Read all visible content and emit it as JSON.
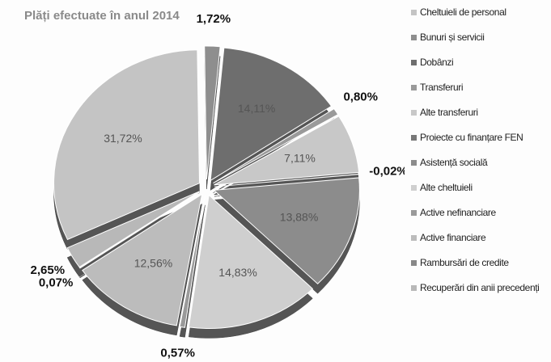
{
  "chart_data": {
    "type": "pie",
    "title": "Plăți efectuate în anul 2014",
    "categories": [
      "Cheltuieli de personal",
      "Bunuri și servicii",
      "Dobânzi",
      "Transferuri",
      "Alte transferuri",
      "Proiecte cu finanțare FEN",
      "Asistență socială",
      "Alte cheltuieli",
      "Active nefinanciare",
      "Active financiare",
      "Rambursări de credite",
      "Recuperări din anii precedenți"
    ],
    "values": [
      31.72,
      1.72,
      14.11,
      0.8,
      7.11,
      -0.02,
      13.88,
      14.83,
      0.57,
      12.56,
      0.07,
      2.65
    ],
    "value_labels": [
      "31,72%",
      "1,72%",
      "14,11%",
      "0,80%",
      "7,11%",
      "-0,02%",
      "13,88%",
      "14,83%",
      "0,57%",
      "12,56%",
      "0,07%",
      "2,65%"
    ],
    "colors": [
      "#c4c4c4",
      "#8e8e8e",
      "#6e6e6e",
      "#9a9a9a",
      "#c8c8c8",
      "#777777",
      "#8c8c8c",
      "#cfcfcf",
      "#9a9a9a",
      "#bcbcbc",
      "#888888",
      "#b8b8b8"
    ],
    "legend": "right"
  }
}
